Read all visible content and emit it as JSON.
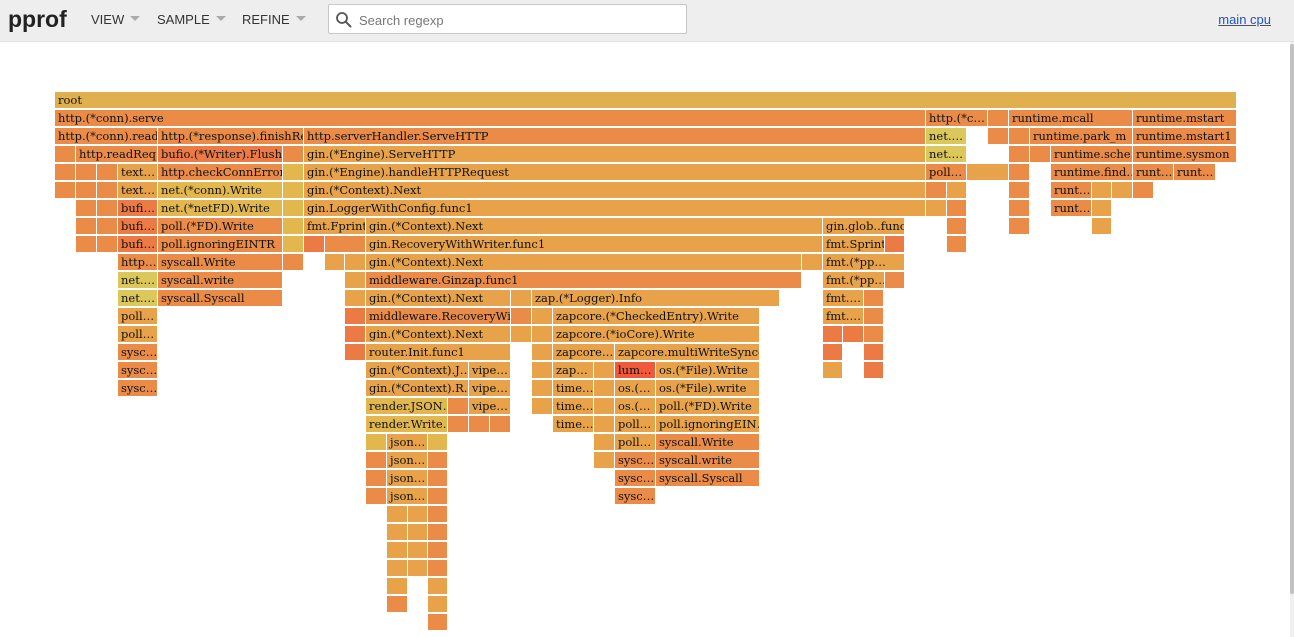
{
  "app": {
    "title": "pprof",
    "menus": [
      "VIEW",
      "SAMPLE",
      "REFINE"
    ],
    "search": {
      "placeholder": "Search regexp",
      "value": ""
    },
    "profile_link": "main cpu"
  },
  "icons": {
    "search": "search-icon",
    "menu_caret": "chevron-down-icon"
  },
  "colors": {
    "frame_a": "#e8a34a",
    "frame_b": "#eb8b48",
    "frame_c": "#e2b84e",
    "frame_d": "#dcc85a",
    "frame_e": "#ec7a45",
    "frame_hot": "#f05a3a",
    "root": "#e0b04e"
  },
  "flamegraph": {
    "frames": [
      {
        "label": "root",
        "c": "root"
      },
      {
        "label": "http.(*conn).serve",
        "c": "frame_b"
      },
      {
        "label": "http.(*c…",
        "c": "frame_b"
      },
      {
        "label": "",
        "c": "frame_b"
      },
      {
        "label": "runtime.mcall",
        "c": "frame_b"
      },
      {
        "label": "runtime.mstart",
        "c": "frame_b"
      },
      {
        "label": "http.(*conn).read…",
        "c": "frame_b"
      },
      {
        "label": "http.(*response).finishRe…",
        "c": "frame_b"
      },
      {
        "label": "http.serverHandler.ServeHTTP",
        "c": "frame_b"
      },
      {
        "label": "net.…",
        "c": "frame_d"
      },
      {
        "label": "",
        "c": "frame_b"
      },
      {
        "label": "",
        "c": "frame_b"
      },
      {
        "label": "runtime.park_m",
        "c": "frame_b"
      },
      {
        "label": "runtime.mstart1",
        "c": "frame_b"
      },
      {
        "label": "",
        "c": "frame_b"
      },
      {
        "label": "http.readReq…",
        "c": "frame_b"
      },
      {
        "label": "bufio.(*Writer).Flush",
        "c": "frame_e"
      },
      {
        "label": "",
        "c": "frame_b"
      },
      {
        "label": "gin.(*Engine).ServeHTTP",
        "c": "frame_a"
      },
      {
        "label": "net.…",
        "c": "frame_d"
      },
      {
        "label": "",
        "c": "frame_b"
      },
      {
        "label": "",
        "c": "frame_b"
      },
      {
        "label": "runtime.sche…",
        "c": "frame_b"
      },
      {
        "label": "runtime.sysmon",
        "c": "frame_b"
      },
      {
        "label": "",
        "c": "frame_b"
      },
      {
        "label": "",
        "c": "frame_b"
      },
      {
        "label": "",
        "c": "frame_b"
      },
      {
        "label": "text…",
        "c": "frame_a"
      },
      {
        "label": "http.checkConnError…",
        "c": "frame_b"
      },
      {
        "label": "",
        "c": "frame_c"
      },
      {
        "label": "gin.(*Engine).handleHTTPRequest",
        "c": "frame_a"
      },
      {
        "label": "poll…",
        "c": "frame_b"
      },
      {
        "label": "",
        "c": "frame_a"
      },
      {
        "label": "",
        "c": "frame_b"
      },
      {
        "label": "runtime.find…",
        "c": "frame_b"
      },
      {
        "label": "runt…",
        "c": "frame_b"
      },
      {
        "label": "runt…",
        "c": "frame_b"
      },
      {
        "label": "",
        "c": "frame_b"
      },
      {
        "label": "",
        "c": "frame_b"
      },
      {
        "label": "",
        "c": "frame_b"
      },
      {
        "label": "text…",
        "c": "frame_a"
      },
      {
        "label": "net.(*conn).Write",
        "c": "frame_c"
      },
      {
        "label": "",
        "c": "frame_c"
      },
      {
        "label": "gin.(*Context).Next",
        "c": "frame_a"
      },
      {
        "label": "",
        "c": "frame_b"
      },
      {
        "label": "",
        "c": "frame_a"
      },
      {
        "label": "",
        "c": "frame_b"
      },
      {
        "label": "runt…",
        "c": "frame_b"
      },
      {
        "label": "",
        "c": "frame_a"
      },
      {
        "label": "",
        "c": "frame_a"
      },
      {
        "label": "",
        "c": "frame_b"
      },
      {
        "label": "",
        "c": "frame_b"
      },
      {
        "label": "",
        "c": "frame_b"
      },
      {
        "label": "bufi…",
        "c": "frame_e"
      },
      {
        "label": "net.(*netFD).Write",
        "c": "frame_c"
      },
      {
        "label": "",
        "c": "frame_c"
      },
      {
        "label": "gin.LoggerWithConfig.func1",
        "c": "frame_a"
      },
      {
        "label": "",
        "c": "frame_a"
      },
      {
        "label": "",
        "c": "frame_b"
      },
      {
        "label": "",
        "c": "frame_b"
      },
      {
        "label": "runt…",
        "c": "frame_b"
      },
      {
        "label": "",
        "c": "frame_a"
      },
      {
        "label": "",
        "c": "frame_b"
      },
      {
        "label": "",
        "c": "frame_b"
      },
      {
        "label": "bufi…",
        "c": "frame_e"
      },
      {
        "label": "poll.(*FD).Write",
        "c": "frame_b"
      },
      {
        "label": "",
        "c": "frame_c"
      },
      {
        "label": "fmt.Fprint",
        "c": "frame_a"
      },
      {
        "label": "gin.(*Context).Next",
        "c": "frame_a"
      },
      {
        "label": "gin.glob..func1",
        "c": "frame_a"
      },
      {
        "label": "",
        "c": "frame_b"
      },
      {
        "label": "",
        "c": "frame_b"
      },
      {
        "label": "",
        "c": "frame_a"
      },
      {
        "label": "",
        "c": "frame_b"
      },
      {
        "label": "",
        "c": "frame_b"
      },
      {
        "label": "bufi…",
        "c": "frame_e"
      },
      {
        "label": "poll.ignoringEINTR",
        "c": "frame_b"
      },
      {
        "label": "",
        "c": "frame_c"
      },
      {
        "label": "",
        "c": "frame_e"
      },
      {
        "label": "",
        "c": "frame_b"
      },
      {
        "label": "gin.RecoveryWithWriter.func1",
        "c": "frame_a"
      },
      {
        "label": "fmt.Sprintf",
        "c": "frame_a"
      },
      {
        "label": "",
        "c": "frame_e"
      },
      {
        "label": "",
        "c": "frame_b"
      },
      {
        "label": "http…",
        "c": "frame_b"
      },
      {
        "label": "syscall.Write",
        "c": "frame_b"
      },
      {
        "label": "",
        "c": "frame_b"
      },
      {
        "label": "",
        "c": "frame_a"
      },
      {
        "label": "",
        "c": "frame_a"
      },
      {
        "label": "gin.(*Context).Next",
        "c": "frame_a"
      },
      {
        "label": "",
        "c": "frame_a"
      },
      {
        "label": "fmt.(*pp…",
        "c": "frame_a"
      },
      {
        "label": "net.…",
        "c": "frame_d"
      },
      {
        "label": "syscall.write",
        "c": "frame_b"
      },
      {
        "label": "",
        "c": "frame_a"
      },
      {
        "label": "middleware.Ginzap.func1",
        "c": "frame_b"
      },
      {
        "label": "fmt.(*pp…",
        "c": "frame_a"
      },
      {
        "label": "",
        "c": "frame_b"
      },
      {
        "label": "net.…",
        "c": "frame_d"
      },
      {
        "label": "syscall.Syscall",
        "c": "frame_b"
      },
      {
        "label": "",
        "c": "frame_a"
      },
      {
        "label": "gin.(*Context).Next",
        "c": "frame_a"
      },
      {
        "label": "",
        "c": "frame_a"
      },
      {
        "label": "zap.(*Logger).Info",
        "c": "frame_a"
      },
      {
        "label": "fmt.…",
        "c": "frame_a"
      },
      {
        "label": "",
        "c": "frame_b"
      },
      {
        "label": "poll…",
        "c": "frame_a"
      },
      {
        "label": "",
        "c": "frame_e"
      },
      {
        "label": "middleware.RecoveryWit…",
        "c": "frame_b"
      },
      {
        "label": "",
        "c": "frame_b"
      },
      {
        "label": "",
        "c": "frame_a"
      },
      {
        "label": "zapcore.(*CheckedEntry).Write",
        "c": "frame_a"
      },
      {
        "label": "fmt.…",
        "c": "frame_a"
      },
      {
        "label": "",
        "c": "frame_b"
      },
      {
        "label": "poll…",
        "c": "frame_a"
      },
      {
        "label": "",
        "c": "frame_e"
      },
      {
        "label": "gin.(*Context).Next",
        "c": "frame_a"
      },
      {
        "label": "",
        "c": "frame_a"
      },
      {
        "label": "",
        "c": "frame_a"
      },
      {
        "label": "zapcore.(*ioCore).Write",
        "c": "frame_a"
      },
      {
        "label": "",
        "c": "frame_e"
      },
      {
        "label": "",
        "c": "frame_e"
      },
      {
        "label": "",
        "c": "frame_b"
      },
      {
        "label": "sysc…",
        "c": "frame_b"
      },
      {
        "label": "",
        "c": "frame_e"
      },
      {
        "label": "router.Init.func1",
        "c": "frame_a"
      },
      {
        "label": "",
        "c": "frame_a"
      },
      {
        "label": "zapcore.…",
        "c": "frame_a"
      },
      {
        "label": "zapcore.multiWriteSyncer…",
        "c": "frame_a"
      },
      {
        "label": "",
        "c": "frame_e"
      },
      {
        "label": "",
        "c": "frame_e"
      },
      {
        "label": "sysc…",
        "c": "frame_b"
      },
      {
        "label": "gin.(*Context).J…",
        "c": "frame_a"
      },
      {
        "label": "vipe…",
        "c": "frame_a"
      },
      {
        "label": "",
        "c": "frame_a"
      },
      {
        "label": "zap…",
        "c": "frame_a"
      },
      {
        "label": "",
        "c": "frame_a"
      },
      {
        "label": "lum…",
        "c": "frame_hot"
      },
      {
        "label": "os.(*File).Write",
        "c": "frame_a"
      },
      {
        "label": "",
        "c": "frame_a"
      },
      {
        "label": "",
        "c": "frame_e"
      },
      {
        "label": "sysc…",
        "c": "frame_b"
      },
      {
        "label": "gin.(*Context).R…",
        "c": "frame_a"
      },
      {
        "label": "vipe…",
        "c": "frame_a"
      },
      {
        "label": "",
        "c": "frame_a"
      },
      {
        "label": "time…",
        "c": "frame_a"
      },
      {
        "label": "",
        "c": "frame_a"
      },
      {
        "label": "os.(…",
        "c": "frame_a"
      },
      {
        "label": "os.(*File).write",
        "c": "frame_a"
      },
      {
        "label": "render.JSON…",
        "c": "frame_c"
      },
      {
        "label": "",
        "c": "frame_b"
      },
      {
        "label": "vipe…",
        "c": "frame_a"
      },
      {
        "label": "",
        "c": "frame_a"
      },
      {
        "label": "time…",
        "c": "frame_a"
      },
      {
        "label": "",
        "c": "frame_a"
      },
      {
        "label": "os.(…",
        "c": "frame_a"
      },
      {
        "label": "poll.(*FD).Write",
        "c": "frame_a"
      },
      {
        "label": "render.Write…",
        "c": "frame_c"
      },
      {
        "label": "",
        "c": "frame_b"
      },
      {
        "label": "",
        "c": "frame_b"
      },
      {
        "label": "",
        "c": "frame_b"
      },
      {
        "label": "time…",
        "c": "frame_a"
      },
      {
        "label": "",
        "c": "frame_a"
      },
      {
        "label": "poll…",
        "c": "frame_a"
      },
      {
        "label": "poll.ignoringEIN…",
        "c": "frame_a"
      },
      {
        "label": "",
        "c": "frame_c"
      },
      {
        "label": "json…",
        "c": "frame_a"
      },
      {
        "label": "",
        "c": "frame_c"
      },
      {
        "label": "",
        "c": "frame_a"
      },
      {
        "label": "poll…",
        "c": "frame_a"
      },
      {
        "label": "syscall.Write",
        "c": "frame_b"
      },
      {
        "label": "",
        "c": "frame_b"
      },
      {
        "label": "json…",
        "c": "frame_a"
      },
      {
        "label": "",
        "c": "frame_b"
      },
      {
        "label": "",
        "c": "frame_a"
      },
      {
        "label": "sysc…",
        "c": "frame_b"
      },
      {
        "label": "syscall.write",
        "c": "frame_b"
      },
      {
        "label": "",
        "c": "frame_b"
      },
      {
        "label": "json…",
        "c": "frame_a"
      },
      {
        "label": "",
        "c": "frame_b"
      },
      {
        "label": "sysc…",
        "c": "frame_b"
      },
      {
        "label": "syscall.Syscall",
        "c": "frame_b"
      },
      {
        "label": "",
        "c": "frame_b"
      },
      {
        "label": "json…",
        "c": "frame_a"
      },
      {
        "label": "",
        "c": "frame_b"
      },
      {
        "label": "sysc…",
        "c": "frame_b"
      },
      {
        "label": "",
        "c": "frame_a"
      },
      {
        "label": "",
        "c": "frame_a"
      },
      {
        "label": "",
        "c": "frame_b"
      },
      {
        "label": "",
        "c": "frame_a"
      },
      {
        "label": "",
        "c": "frame_a"
      },
      {
        "label": "",
        "c": "frame_b"
      },
      {
        "label": "",
        "c": "frame_a"
      },
      {
        "label": "",
        "c": "frame_a"
      },
      {
        "label": "",
        "c": "frame_b"
      },
      {
        "label": "",
        "c": "frame_a"
      },
      {
        "label": "",
        "c": "frame_a"
      },
      {
        "label": "",
        "c": "frame_b"
      },
      {
        "label": "",
        "c": "frame_a"
      },
      {
        "label": "",
        "c": "frame_a"
      },
      {
        "label": "",
        "c": "frame_b"
      },
      {
        "label": "",
        "c": "frame_a"
      },
      {
        "label": "",
        "c": "frame_b"
      },
      {
        "label": "",
        "c": "frame_a"
      },
      {
        "label": "",
        "c": "frame_b"
      }
    ]
  }
}
